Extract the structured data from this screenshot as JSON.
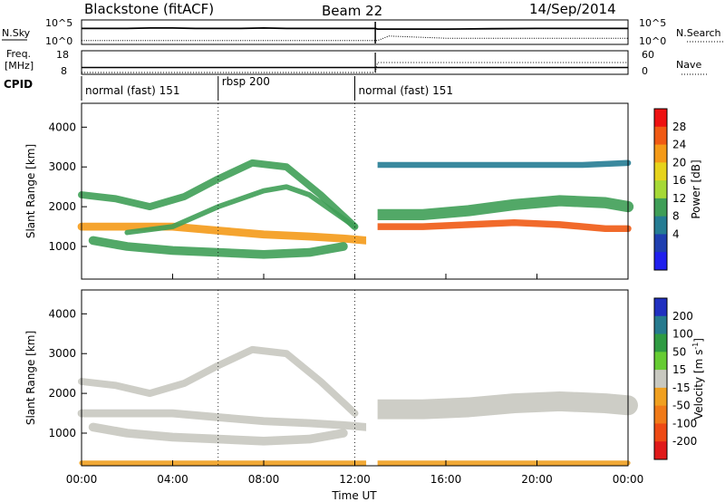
{
  "header": {
    "station": "Blackstone (fitACF)",
    "beam": "Beam 22",
    "date": "14/Sep/2014"
  },
  "noise_panel": {
    "left_label": "N.Sky",
    "right_label": "N.Search",
    "left_ticks": [
      "10^5",
      "10^0"
    ],
    "right_ticks": [
      "10^5",
      "10^0"
    ]
  },
  "freq_panel": {
    "left_label_line1": "Freq.",
    "left_label_line2": "[MHz]",
    "right_label": "Nave",
    "left_ticks": [
      "18",
      "8"
    ],
    "right_ticks": [
      "60",
      "0"
    ]
  },
  "cpid": {
    "label": "CPID",
    "segments": [
      {
        "name": "normal (fast) 151",
        "start_h": 0.0,
        "end_h": 6.0
      },
      {
        "name": "rbsp 200",
        "start_h": 6.0,
        "end_h": 12.0
      },
      {
        "name": "normal (fast) 151",
        "start_h": 12.0,
        "end_h": 24.0
      }
    ]
  },
  "axes": {
    "ylabel": "Slant Range [km]",
    "xlabel": "Time UT",
    "yticks": [
      "1000",
      "2000",
      "3000",
      "4000"
    ],
    "xticks": [
      "00:00",
      "04:00",
      "08:00",
      "12:00",
      "16:00",
      "20:00",
      "00:00"
    ]
  },
  "power_colorbar": {
    "label": "Power [dB]",
    "ticks": [
      "28",
      "24",
      "20",
      "16",
      "12",
      "8",
      "4"
    ],
    "colors": [
      "#ee1111",
      "#f05a14",
      "#f49a18",
      "#e6d31c",
      "#a6d936",
      "#3f9e57",
      "#257c93",
      "#1f3fb0",
      "#2020ee"
    ]
  },
  "velocity_colorbar": {
    "label": "Velocity [m s",
    "label_sup": "-1",
    "label_end": "]",
    "ticks": [
      "200",
      "100",
      "50",
      "15",
      "-15",
      "-50",
      "-100",
      "-200"
    ],
    "colors": [
      "#2030c0",
      "#267a8e",
      "#2f9b42",
      "#66cc33",
      "#c8c8c0",
      "#f0a020",
      "#f07a18",
      "#ee4a14",
      "#e01a1a"
    ]
  },
  "chart_data": [
    {
      "type": "line",
      "title": "N.Sky / N.Search",
      "x_range_h": [
        0,
        24
      ],
      "yscale": "log",
      "ylim": [
        1,
        100000
      ],
      "series": [
        {
          "name": "N.Sky",
          "x": [
            0,
            1,
            2,
            3,
            4,
            5,
            6,
            7,
            8,
            9,
            10,
            11,
            12,
            12.9,
            13,
            14,
            16,
            18,
            20,
            22,
            24
          ],
          "y": [
            3000,
            3000,
            3000,
            4000,
            4000,
            3000,
            3000,
            3000,
            4000,
            3000,
            3000,
            3000,
            3000,
            3000,
            2000,
            2000,
            2000,
            2500,
            3000,
            3000,
            3000
          ]
        },
        {
          "name": "N.Search",
          "x": [
            0,
            2,
            4,
            6,
            8,
            10,
            12,
            13,
            13.5,
            16,
            20,
            24
          ],
          "y": [
            2,
            2,
            2,
            2,
            2,
            2,
            2,
            2,
            30,
            8,
            8,
            8
          ]
        }
      ]
    },
    {
      "type": "line",
      "title": "Freq. / Nave",
      "x_range_h": [
        0,
        24
      ],
      "ylim_left": [
        8,
        18
      ],
      "ylim_right": [
        0,
        60
      ],
      "series": [
        {
          "name": "Freq. [MHz]",
          "x": [
            0,
            12.9,
            12.9,
            24
          ],
          "y": [
            10.5,
            10.5,
            10.5,
            10.5
          ]
        },
        {
          "name": "Nave",
          "x": [
            0,
            12.9,
            13.0,
            24
          ],
          "y": [
            0,
            0,
            30,
            30
          ]
        }
      ]
    },
    {
      "type": "heatmap",
      "title": "Power",
      "xlabel": "Time UT",
      "ylabel": "Slant Range [km]",
      "x_range_h": [
        0,
        24
      ],
      "ylim": [
        180,
        4600
      ],
      "zlim": [
        0,
        30
      ],
      "bands": [
        {
          "x": [
            0,
            2,
            4,
            6,
            8,
            10,
            11.5,
            12.5
          ],
          "y": [
            1500,
            1500,
            1500,
            1400,
            1300,
            1250,
            1200,
            1150
          ],
          "z": 24,
          "thickness_km": 200
        },
        {
          "x": [
            0.5,
            2,
            4,
            6,
            8,
            10,
            11.5
          ],
          "y": [
            1150,
            1000,
            900,
            850,
            800,
            850,
            1000
          ],
          "z": 13,
          "thickness_km": 220
        },
        {
          "x": [
            0,
            1.5,
            3,
            4.5,
            6,
            7.5,
            9,
            10.5,
            12
          ],
          "y": [
            2300,
            2200,
            2000,
            2250,
            2700,
            3100,
            3000,
            2300,
            1500
          ],
          "z": 12,
          "thickness_km": 180
        },
        {
          "x": [
            2,
            4,
            6,
            8,
            9,
            10,
            11,
            12
          ],
          "y": [
            1350,
            1500,
            2000,
            2400,
            2500,
            2300,
            1900,
            1500
          ],
          "z": 10,
          "thickness_km": 130
        },
        {
          "x": [
            13,
            15,
            17,
            19,
            21,
            23,
            24
          ],
          "y": [
            1500,
            1500,
            1550,
            1600,
            1550,
            1450,
            1450
          ],
          "z": 27,
          "thickness_km": 170
        },
        {
          "x": [
            13,
            15,
            17,
            19,
            21,
            23,
            24
          ],
          "y": [
            1800,
            1800,
            1900,
            2050,
            2150,
            2100,
            2000
          ],
          "z": 12,
          "thickness_km": 280
        },
        {
          "x": [
            13,
            16,
            19,
            22,
            24
          ],
          "y": [
            3050,
            3050,
            3050,
            3050,
            3100
          ],
          "z": 6,
          "thickness_km": 150
        }
      ]
    },
    {
      "type": "heatmap",
      "title": "Velocity",
      "xlabel": "Time UT",
      "ylabel": "Slant Range [km]",
      "x_range_h": [
        0,
        24
      ],
      "ylim": [
        180,
        4600
      ],
      "zlim": [
        -200,
        200
      ],
      "bands": [
        {
          "x": [
            0,
            2,
            4,
            6,
            8,
            10,
            11.5,
            12.5
          ],
          "y": [
            1500,
            1500,
            1500,
            1400,
            1300,
            1250,
            1200,
            1150
          ],
          "z": 0,
          "thickness_km": 200
        },
        {
          "x": [
            0.5,
            2,
            4,
            6,
            8,
            10,
            11.5
          ],
          "y": [
            1150,
            1000,
            900,
            850,
            800,
            850,
            1000
          ],
          "z": 0,
          "thickness_km": 220
        },
        {
          "x": [
            0,
            1.5,
            3,
            4.5,
            6,
            7.5,
            9,
            10.5,
            12
          ],
          "y": [
            2300,
            2200,
            2000,
            2250,
            2700,
            3100,
            3000,
            2300,
            1500
          ],
          "z": 5,
          "thickness_km": 180
        },
        {
          "x": [
            13,
            15,
            17,
            19,
            21,
            23,
            24
          ],
          "y": [
            1600,
            1600,
            1650,
            1750,
            1800,
            1750,
            1700
          ],
          "z": 0,
          "thickness_km": 500
        },
        {
          "x": [
            0,
            6,
            12,
            18,
            24
          ],
          "y": [
            250,
            250,
            250,
            250,
            250
          ],
          "z": -40,
          "thickness_km": 120
        }
      ]
    }
  ]
}
